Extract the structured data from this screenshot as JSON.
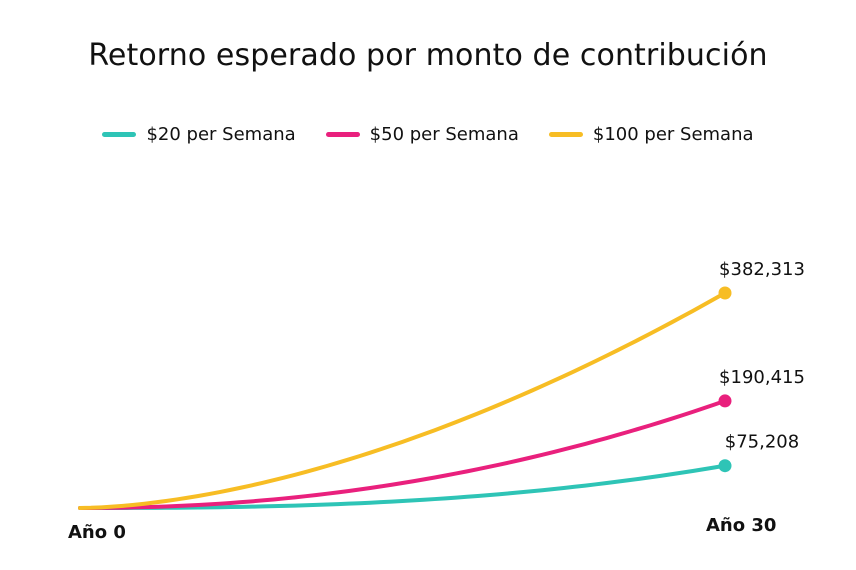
{
  "chart_data": {
    "type": "line",
    "title": "Retorno esperado por monto de contribución",
    "xlabel": "",
    "ylabel": "",
    "x": [
      0,
      30
    ],
    "x_tick_labels": [
      "Año 0",
      "Año 30"
    ],
    "grid": false,
    "legend_position": "top-center",
    "series": [
      {
        "name": "$20 per Semana",
        "color": "#2ec4b6",
        "start": 0,
        "end": 75208,
        "end_label": "$75,208"
      },
      {
        "name": "$50 per Semana",
        "color": "#e9207d",
        "start": 0,
        "end": 190415,
        "end_label": "$190,415"
      },
      {
        "name": "$100 per Semana",
        "color": "#f7bd24",
        "start": 0,
        "end": 382313,
        "end_label": "$382,313"
      }
    ]
  }
}
